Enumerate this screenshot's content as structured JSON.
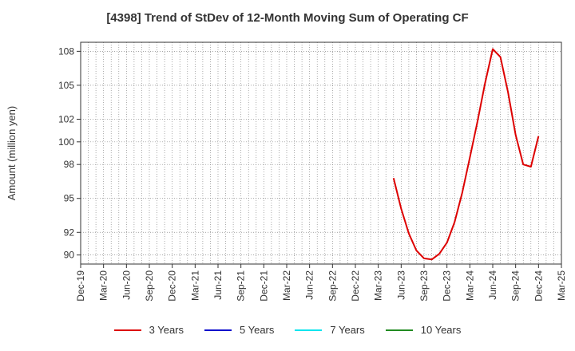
{
  "chart_data": {
    "type": "line",
    "title": "[4398]  Trend of StDev of 12-Month Moving Sum of Operating CF",
    "xlabel": "",
    "ylabel": "Amount (million yen)",
    "ylim": [
      89.2,
      108.8
    ],
    "yticks": [
      90,
      92,
      95,
      98,
      100,
      102,
      105,
      108
    ],
    "ytick_labels": [
      "90",
      "92",
      "95",
      "98",
      "100",
      "102",
      "105",
      "108"
    ],
    "xtick_labels": [
      "Dec-19",
      "Mar-20",
      "Jun-20",
      "Sep-20",
      "Dec-20",
      "Mar-21",
      "Jun-21",
      "Sep-21",
      "Dec-21",
      "Mar-22",
      "Jun-22",
      "Sep-22",
      "Dec-22",
      "Mar-23",
      "Jun-23",
      "Sep-23",
      "Dec-23",
      "Mar-24",
      "Jun-24",
      "Sep-24",
      "Dec-24",
      "Mar-25"
    ],
    "grid": true,
    "legend_position": "bottom",
    "series": [
      {
        "name": "3 Years",
        "color": "#dd0000",
        "x": [
          "2023-05",
          "2023-06",
          "2023-07",
          "2023-08",
          "2023-09",
          "2023-10",
          "2023-11",
          "2023-12",
          "2024-01",
          "2024-02",
          "2024-03",
          "2024-04",
          "2024-05",
          "2024-06",
          "2024-07",
          "2024-08",
          "2024-09",
          "2024-10",
          "2024-11",
          "2024-12"
        ],
        "values": [
          96.8,
          94.1,
          91.9,
          90.4,
          89.7,
          89.6,
          90.1,
          91.1,
          92.9,
          95.5,
          98.6,
          101.8,
          105.2,
          108.2,
          107.5,
          104.4,
          100.6,
          98.0,
          97.8,
          100.5
        ]
      },
      {
        "name": "5 Years",
        "color": "#0000cc",
        "x": [],
        "values": []
      },
      {
        "name": "7 Years",
        "color": "#00e5ee",
        "x": [],
        "values": []
      },
      {
        "name": "10 Years",
        "color": "#228b22",
        "x": [],
        "values": []
      }
    ]
  }
}
